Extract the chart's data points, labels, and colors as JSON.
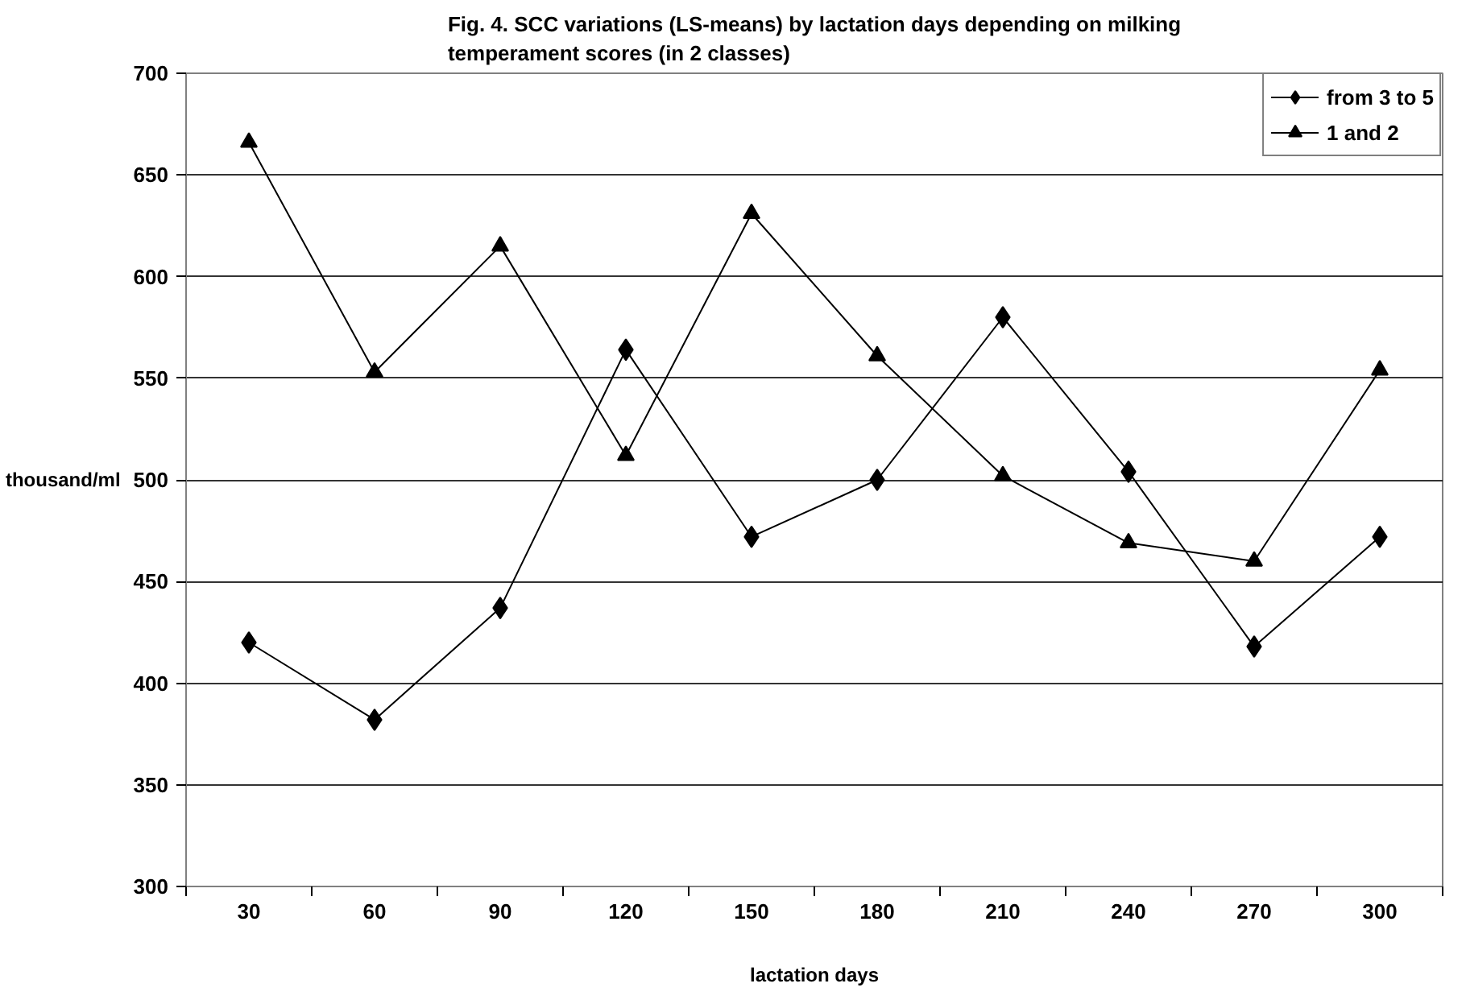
{
  "chart_data": {
    "type": "line",
    "title": "Fig. 4. SCC variations (LS-means) by lactation days depending on milking\ntemperament scores (in 2 classes)",
    "xlabel": "lactation days",
    "ylabel": "thousand/ml",
    "categories": [
      "30",
      "60",
      "90",
      "120",
      "150",
      "180",
      "210",
      "240",
      "270",
      "300"
    ],
    "series": [
      {
        "name": "from 3 to 5",
        "color": "#000000",
        "marker": "diamond",
        "values": [
          420,
          382,
          437,
          564,
          472,
          500,
          580,
          504,
          418,
          472
        ]
      },
      {
        "name": "1 and 2",
        "color": "#000000",
        "marker": "triangle",
        "values": [
          666,
          553,
          615,
          512,
          631,
          561,
          502,
          469,
          460,
          554
        ]
      }
    ],
    "ylim": [
      300,
      700
    ],
    "yticks": [
      300,
      350,
      400,
      450,
      500,
      550,
      600,
      650,
      700
    ],
    "grid": "y",
    "legend": "top right",
    "line_style": "solid"
  }
}
